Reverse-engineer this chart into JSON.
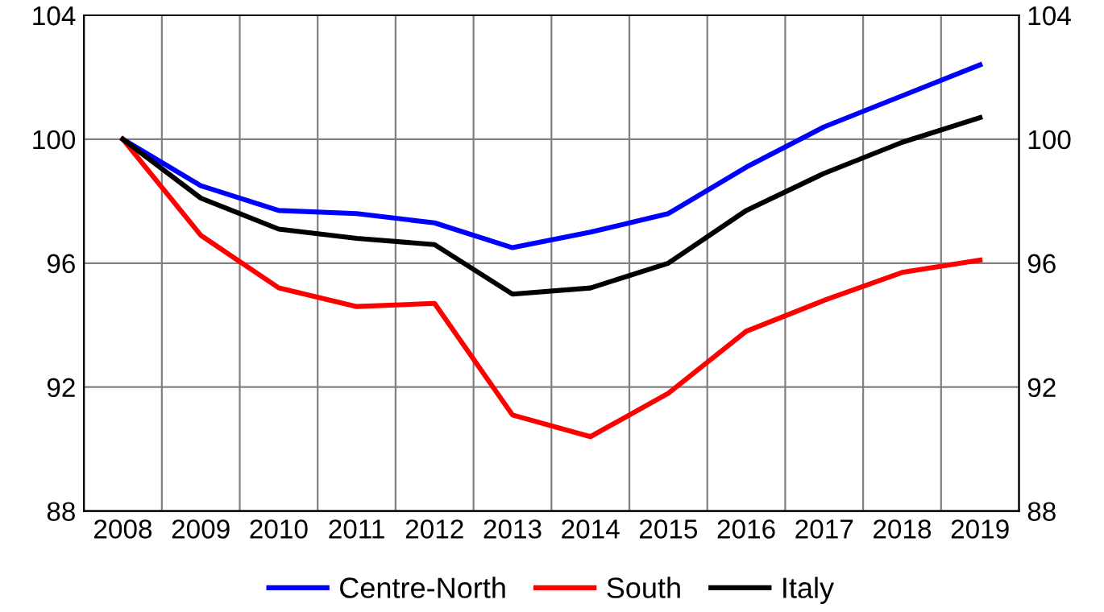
{
  "chart_data": {
    "type": "line",
    "categories": [
      "2008",
      "2009",
      "2010",
      "2011",
      "2012",
      "2013",
      "2014",
      "2015",
      "2016",
      "2017",
      "2018",
      "2019"
    ],
    "series": [
      {
        "name": "Centre-North",
        "color": "#0000ff",
        "values": [
          100,
          98.5,
          97.7,
          97.6,
          97.3,
          96.5,
          97.0,
          97.6,
          99.1,
          100.4,
          101.4,
          102.4
        ]
      },
      {
        "name": "South",
        "color": "#ff0000",
        "values": [
          100,
          96.9,
          95.2,
          94.6,
          94.7,
          91.1,
          90.4,
          91.8,
          93.8,
          94.8,
          95.7,
          96.1
        ]
      },
      {
        "name": "Italy",
        "color": "#000000",
        "values": [
          100,
          98.1,
          97.1,
          96.8,
          96.6,
          95.0,
          95.2,
          96.0,
          97.7,
          98.9,
          99.9,
          100.7
        ]
      }
    ],
    "ylim": [
      88,
      104
    ],
    "yticks": [
      88,
      92,
      96,
      100,
      104
    ],
    "y2lim": [
      88,
      104
    ],
    "y2ticks": [
      88,
      92,
      96,
      100,
      104
    ],
    "grid": true,
    "legend": "bottom",
    "marker": "none",
    "line_style": "solid"
  }
}
